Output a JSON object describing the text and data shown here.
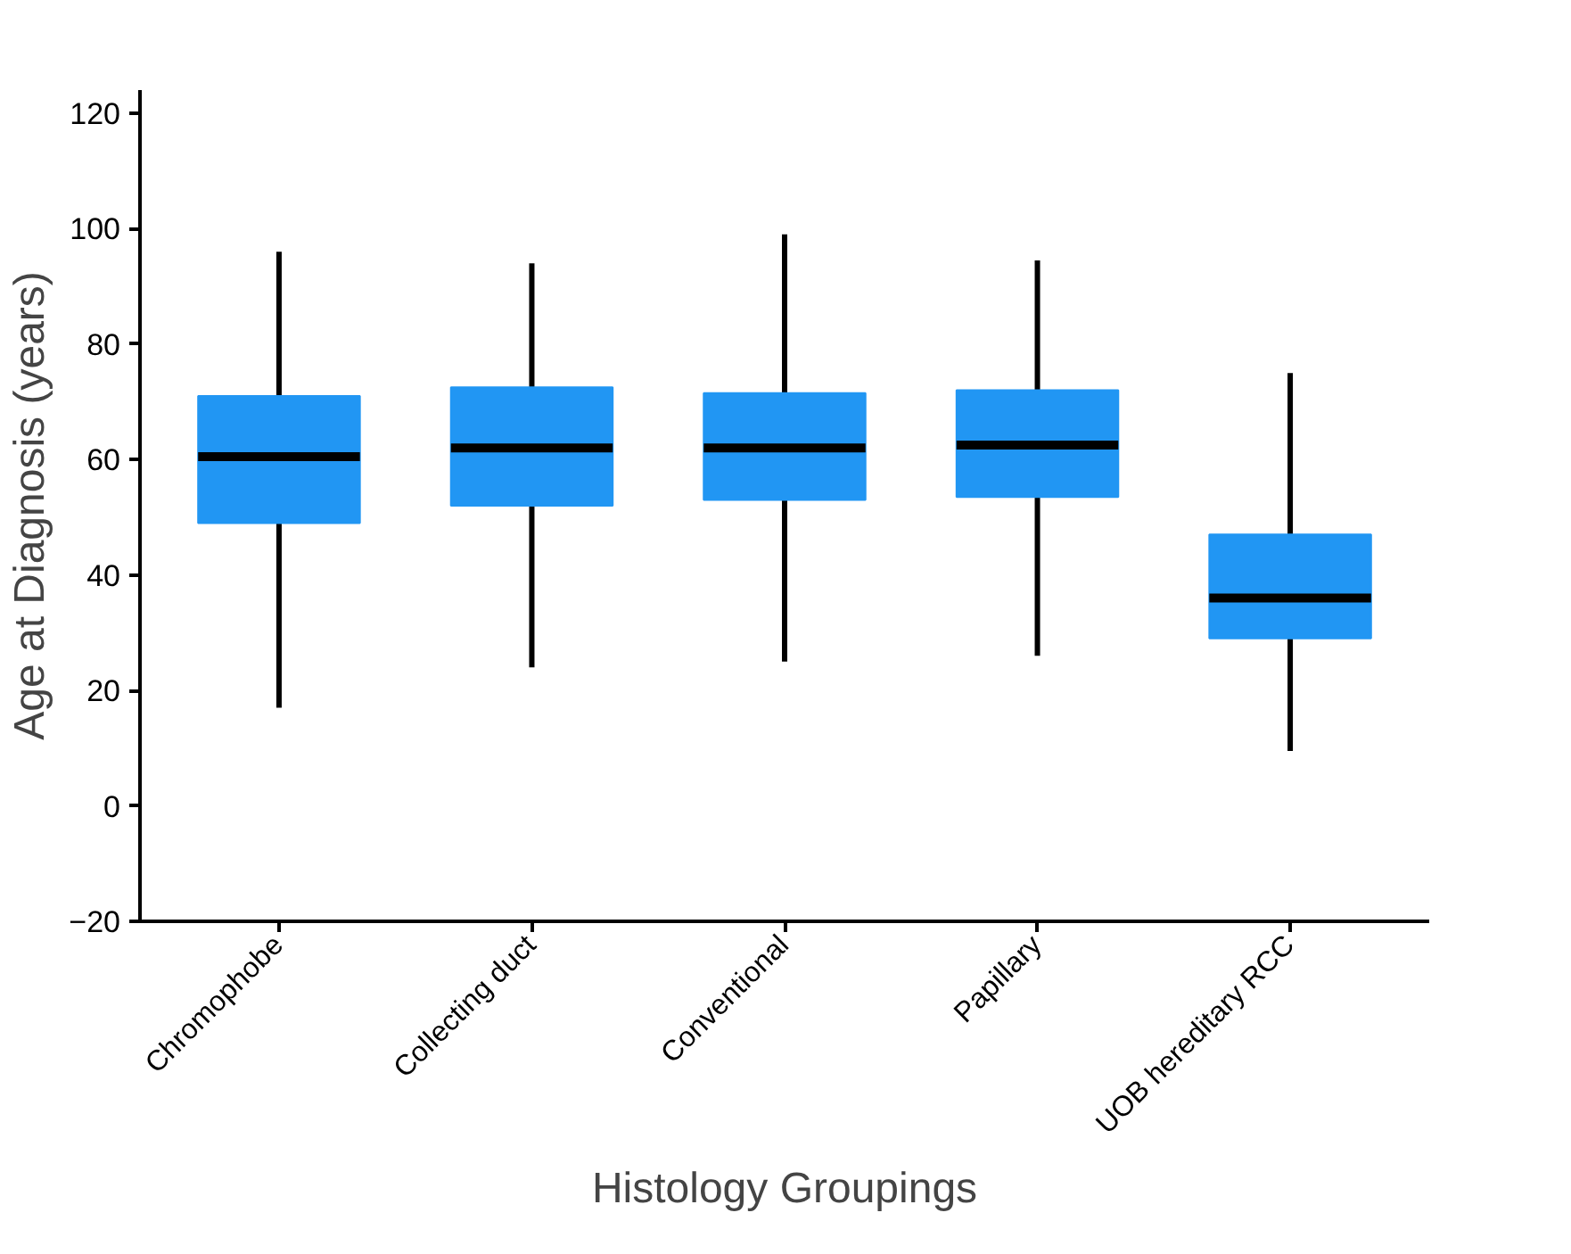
{
  "chart_data": {
    "type": "box",
    "xlabel": "Histology Groupings",
    "ylabel": "Age at Diagnosis (years)",
    "categories": [
      "Chromophobe",
      "Collecting duct",
      "Conventional",
      "Papillary",
      "UOB hereditary RCC"
    ],
    "color": "#2196f3",
    "boxes": [
      {
        "low": 17,
        "q1": 49,
        "median": 60.5,
        "q3": 71,
        "high": 96
      },
      {
        "low": 24,
        "q1": 52,
        "median": 62,
        "q3": 72.5,
        "high": 94
      },
      {
        "low": 25,
        "q1": 53,
        "median": 62,
        "q3": 71.5,
        "high": 99
      },
      {
        "low": 26,
        "q1": 53.5,
        "median": 62.5,
        "q3": 72,
        "high": 94.5
      },
      {
        "low": 9.5,
        "q1": 29,
        "median": 36,
        "q3": 47,
        "high": 75
      }
    ],
    "ylim": [
      -20,
      124
    ],
    "yticks": [
      -20,
      0,
      20,
      40,
      60,
      80,
      100,
      120
    ]
  }
}
